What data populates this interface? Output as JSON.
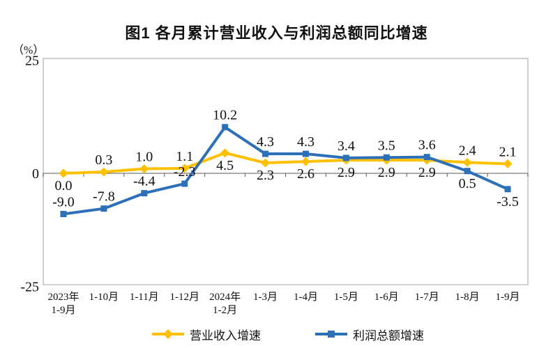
{
  "title": "图1  各月累计营业收入与利润总额同比增速",
  "unit_label": "（%）",
  "chart_data": {
    "type": "line",
    "categories": [
      [
        "2023年",
        "1-9月"
      ],
      [
        "1-10月"
      ],
      [
        "1-11月"
      ],
      [
        "1-12月"
      ],
      [
        "2024年",
        "1-2月"
      ],
      [
        "1-3月"
      ],
      [
        "1-4月"
      ],
      [
        "1-5月"
      ],
      [
        "1-6月"
      ],
      [
        "1-7月"
      ],
      [
        "1-8月"
      ],
      [
        "1-9月"
      ]
    ],
    "series": [
      {
        "name": "营业收入增速",
        "color": "#FFC000",
        "marker": "diamond",
        "values": [
          0.0,
          0.3,
          1.0,
          1.1,
          4.5,
          2.3,
          2.6,
          2.9,
          2.9,
          2.9,
          2.4,
          2.1
        ],
        "label_side": [
          "below",
          "above",
          "above",
          "above",
          "below",
          "below",
          "below",
          "below",
          "below",
          "below",
          "above",
          "above"
        ]
      },
      {
        "name": "利润总额增速",
        "color": "#2E70B8",
        "marker": "square",
        "values": [
          -9.0,
          -7.8,
          -4.4,
          -2.3,
          10.2,
          4.3,
          4.3,
          3.4,
          3.5,
          3.6,
          0.5,
          -3.5
        ],
        "label_side": [
          "above",
          "above",
          "above",
          "above",
          "above",
          "above",
          "above",
          "above",
          "above",
          "above",
          "below",
          "below"
        ]
      }
    ],
    "ylim": [
      -25,
      25
    ],
    "yticks": [
      25,
      0,
      -25
    ],
    "grid": false,
    "legend_position": "bottom",
    "plot_border_color": "#BFBFBF",
    "axis_color": "#595959",
    "label_color": "#111111"
  }
}
